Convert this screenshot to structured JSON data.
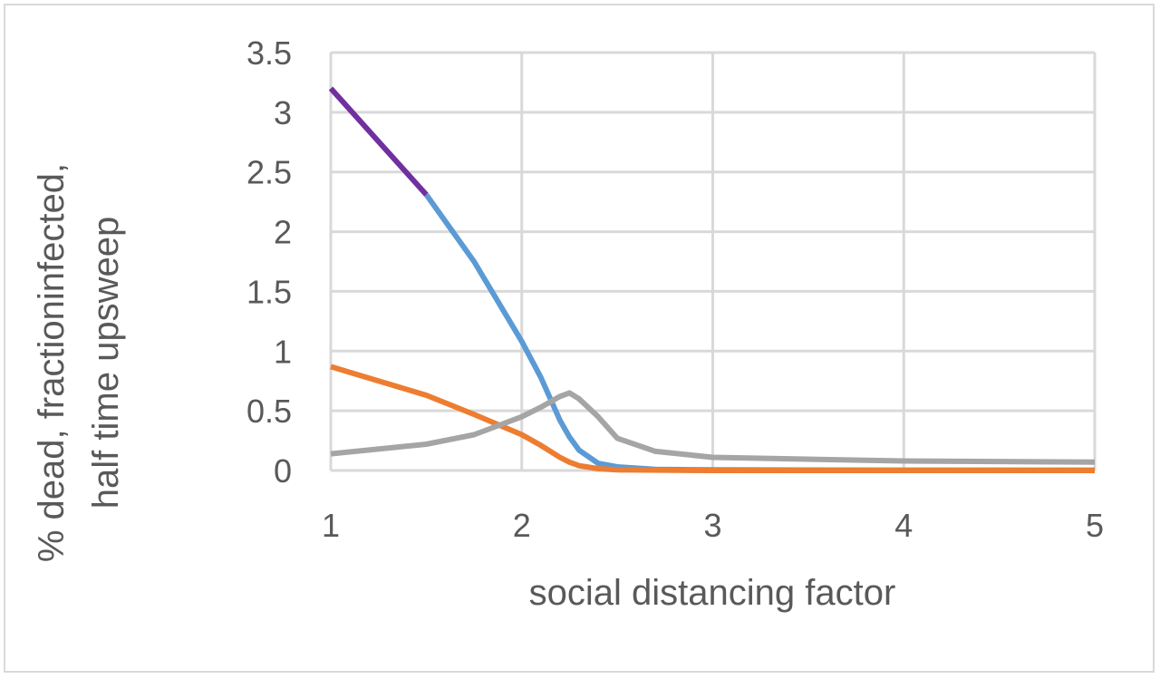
{
  "chart_data": {
    "type": "line",
    "title": "",
    "xlabel": "social distancing factor",
    "ylabel_lines": [
      "% dead, fractioninfected,",
      "half time upsweep"
    ],
    "xlim": [
      1,
      5
    ],
    "ylim": [
      0,
      3.5
    ],
    "x_ticks": [
      1,
      2,
      3,
      4,
      5
    ],
    "x_tick_labels": [
      "1",
      "2",
      "3",
      "4",
      "5"
    ],
    "y_ticks": [
      0,
      0.5,
      1,
      1.5,
      2,
      2.5,
      3,
      3.5
    ],
    "y_tick_labels": [
      "0",
      "0.5",
      "1",
      "1.5",
      "2",
      "2.5",
      "3",
      "3.5"
    ],
    "grid": true,
    "legend": "none",
    "series": [
      {
        "color": "#5b9bd5",
        "points": [
          [
            1.5,
            2.31
          ],
          [
            1.75,
            1.75
          ],
          [
            2.0,
            1.08
          ],
          [
            2.1,
            0.78
          ],
          [
            2.2,
            0.42
          ],
          [
            2.25,
            0.28
          ],
          [
            2.3,
            0.17
          ],
          [
            2.4,
            0.06
          ],
          [
            2.5,
            0.03
          ],
          [
            2.7,
            0.01
          ],
          [
            3.0,
            0.005
          ],
          [
            4.0,
            0.003
          ],
          [
            5.0,
            0.003
          ]
        ]
      },
      {
        "color": "#7030a0",
        "points": [
          [
            1.0,
            3.2
          ],
          [
            1.5,
            2.31
          ]
        ]
      },
      {
        "color": "#ed7d31",
        "points": [
          [
            1.0,
            0.87
          ],
          [
            1.5,
            0.63
          ],
          [
            1.75,
            0.47
          ],
          [
            2.0,
            0.3
          ],
          [
            2.1,
            0.21
          ],
          [
            2.2,
            0.11
          ],
          [
            2.25,
            0.07
          ],
          [
            2.3,
            0.04
          ],
          [
            2.4,
            0.015
          ],
          [
            2.5,
            0.005
          ],
          [
            3.0,
            0.0
          ],
          [
            4.0,
            0.0
          ],
          [
            5.0,
            0.0
          ]
        ]
      },
      {
        "color": "#a5a5a5",
        "points": [
          [
            1.0,
            0.14
          ],
          [
            1.5,
            0.22
          ],
          [
            1.75,
            0.3
          ],
          [
            2.0,
            0.45
          ],
          [
            2.1,
            0.53
          ],
          [
            2.2,
            0.62
          ],
          [
            2.25,
            0.65
          ],
          [
            2.3,
            0.6
          ],
          [
            2.4,
            0.45
          ],
          [
            2.5,
            0.27
          ],
          [
            2.7,
            0.16
          ],
          [
            3.0,
            0.11
          ],
          [
            4.0,
            0.08
          ],
          [
            5.0,
            0.07
          ]
        ]
      }
    ]
  }
}
